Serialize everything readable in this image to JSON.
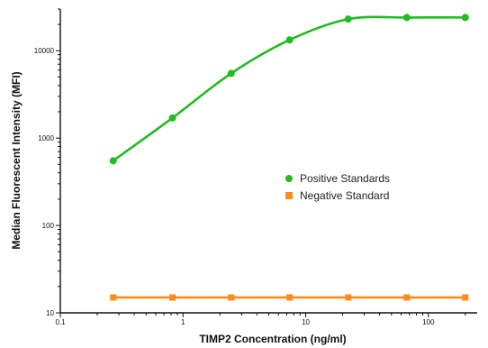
{
  "chart_data": {
    "type": "scatter",
    "title": "",
    "xlabel": "TIMP2 Concentration (ng/ml)",
    "ylabel": "Median Fluorescent Intensity (MFI)",
    "xscale": "log",
    "yscale": "log",
    "xlim": [
      0.1,
      250
    ],
    "ylim": [
      10,
      30000
    ],
    "x_ticks": [
      {
        "value": 0.1,
        "label": "0.1"
      },
      {
        "value": 1,
        "label": "1"
      },
      {
        "value": 10,
        "label": "10"
      },
      {
        "value": 100,
        "label": "100"
      }
    ],
    "y_ticks": [
      {
        "value": 10,
        "label": "10"
      },
      {
        "value": 100,
        "label": "100"
      },
      {
        "value": 1000,
        "label": "1000"
      },
      {
        "value": 10000,
        "label": "10000"
      }
    ],
    "grid": false,
    "legend_position": "center-right",
    "series": [
      {
        "name": "Positive Standards",
        "color": "#22bb22",
        "marker": "circle",
        "fit": "sigmoid",
        "points": [
          [
            0.27,
            550
          ],
          [
            0.82,
            1700
          ],
          [
            2.47,
            5500
          ],
          [
            7.4,
            13300
          ],
          [
            22.2,
            23000
          ],
          [
            66.7,
            24000
          ],
          [
            200,
            24000
          ]
        ]
      },
      {
        "name": "Negative Standard",
        "color": "#ff8c1a",
        "marker": "square",
        "fit": "line",
        "points": [
          [
            0.27,
            15
          ],
          [
            0.82,
            15
          ],
          [
            2.47,
            15
          ],
          [
            7.4,
            15
          ],
          [
            22.2,
            15
          ],
          [
            66.7,
            15
          ],
          [
            200,
            15
          ]
        ]
      }
    ]
  }
}
